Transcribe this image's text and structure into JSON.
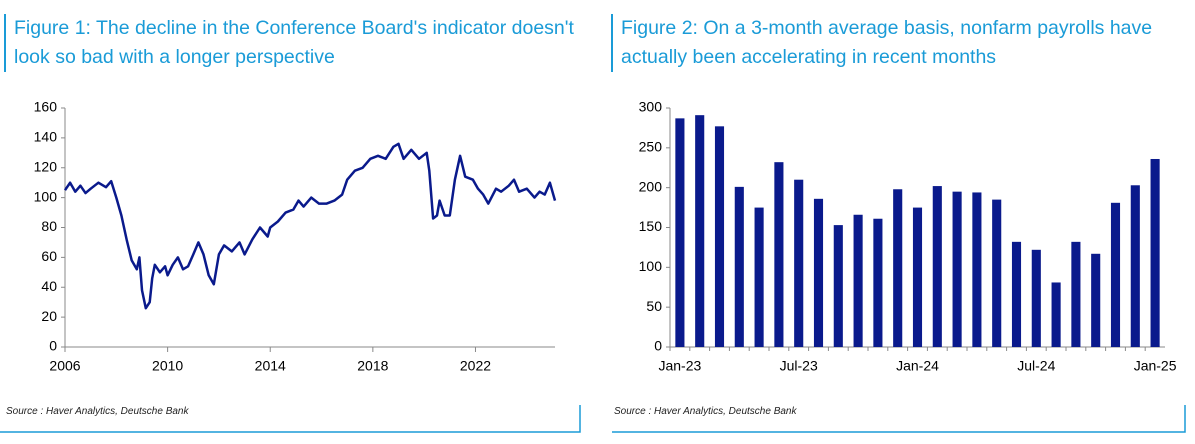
{
  "chart_data": [
    {
      "type": "line",
      "title": "Figure 1: The decline in the Conference Board's indicator doesn't look so bad with a longer perspective",
      "source": "Source : Haver Analytics, Deutsche Bank",
      "color": "#0a1a8c",
      "x": [
        2006.0,
        2006.2,
        2006.4,
        2006.6,
        2006.8,
        2007.0,
        2007.3,
        2007.6,
        2007.8,
        2008.0,
        2008.2,
        2008.4,
        2008.6,
        2008.8,
        2008.9,
        2009.0,
        2009.15,
        2009.3,
        2009.4,
        2009.5,
        2009.7,
        2009.9,
        2010.0,
        2010.2,
        2010.4,
        2010.6,
        2010.8,
        2011.0,
        2011.2,
        2011.4,
        2011.6,
        2011.8,
        2012.0,
        2012.2,
        2012.5,
        2012.8,
        2013.0,
        2013.3,
        2013.6,
        2013.9,
        2014.0,
        2014.3,
        2014.6,
        2014.9,
        2015.1,
        2015.3,
        2015.6,
        2015.9,
        2016.2,
        2016.5,
        2016.8,
        2017.0,
        2017.3,
        2017.6,
        2017.9,
        2018.2,
        2018.5,
        2018.8,
        2019.0,
        2019.2,
        2019.5,
        2019.8,
        2020.1,
        2020.2,
        2020.35,
        2020.5,
        2020.6,
        2020.8,
        2021.0,
        2021.2,
        2021.4,
        2021.6,
        2021.9,
        2022.1,
        2022.3,
        2022.5,
        2022.8,
        2023.0,
        2023.3,
        2023.5,
        2023.7,
        2024.0,
        2024.3,
        2024.5,
        2024.7,
        2024.9,
        2025.1
      ],
      "values": [
        105,
        110,
        104,
        108,
        103,
        106,
        110,
        107,
        111,
        100,
        88,
        72,
        58,
        52,
        60,
        38,
        26,
        30,
        46,
        55,
        50,
        54,
        48,
        55,
        60,
        52,
        54,
        62,
        70,
        62,
        48,
        42,
        62,
        68,
        64,
        70,
        62,
        72,
        80,
        74,
        80,
        84,
        90,
        92,
        98,
        94,
        100,
        96,
        96,
        98,
        102,
        112,
        118,
        120,
        126,
        128,
        126,
        134,
        136,
        126,
        132,
        126,
        130,
        118,
        86,
        88,
        98,
        88,
        88,
        112,
        128,
        114,
        112,
        106,
        102,
        96,
        106,
        104,
        108,
        112,
        104,
        106,
        100,
        104,
        102,
        110,
        98
      ],
      "xlim": [
        2006,
        2025.1
      ],
      "xticks": [
        2006,
        2010,
        2014,
        2018,
        2022
      ],
      "ylim": [
        0,
        160
      ],
      "yticks": [
        0,
        20,
        40,
        60,
        80,
        100,
        120,
        140,
        160
      ]
    },
    {
      "type": "bar",
      "title": "Figure 2: On a 3-month average basis, nonfarm payrolls have actually been accelerating in recent months",
      "source": "Source : Haver Analytics, Deutsche Bank",
      "color": "#0a1a8c",
      "categories": [
        "Jan-23",
        null,
        null,
        null,
        null,
        null,
        "Jul-23",
        null,
        null,
        null,
        null,
        null,
        "Jan-24",
        null,
        null,
        null,
        null,
        null,
        "Jul-24",
        null,
        null,
        null,
        null,
        null,
        "Jan-25"
      ],
      "values": [
        287,
        291,
        277,
        201,
        175,
        232,
        210,
        186,
        153,
        166,
        161,
        198,
        175,
        202,
        195,
        194,
        185,
        132,
        122,
        81,
        132,
        117,
        181,
        203,
        236
      ],
      "ylim": [
        0,
        300
      ],
      "yticks": [
        0,
        50,
        100,
        150,
        200,
        250,
        300
      ]
    }
  ]
}
